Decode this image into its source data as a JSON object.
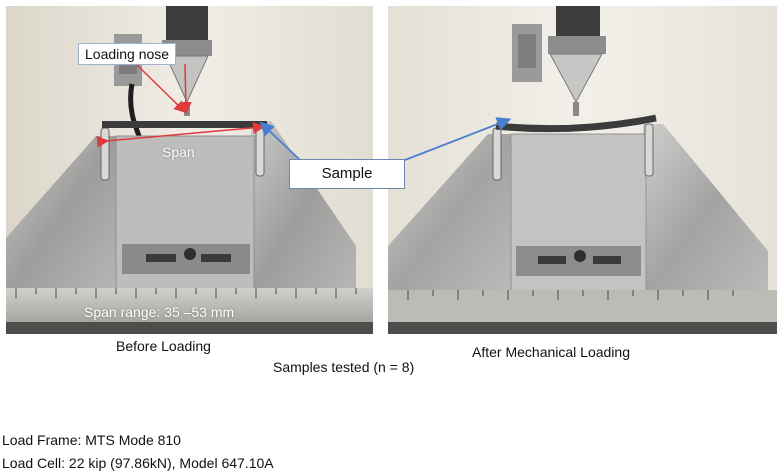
{
  "annotations": {
    "loading_nose": "Loading nose",
    "span": "Span",
    "sample": "Sample",
    "span_range": "Span range: 35 –53 mm"
  },
  "captions": {
    "before": "Before Loading",
    "after": "After Mechanical Loading",
    "samples_tested": "Samples tested (n = 8)"
  },
  "specs": {
    "load_frame": "Load Frame:  MTS Mode 810",
    "load_cell": "Load Cell: 22 kip (97.86kN), Model 647.10A"
  },
  "colors": {
    "red_arrow": "#e03a3a",
    "blue_arrow": "#4a7fd0",
    "steel": "#a9a9a9",
    "wall": "#ece8df"
  }
}
